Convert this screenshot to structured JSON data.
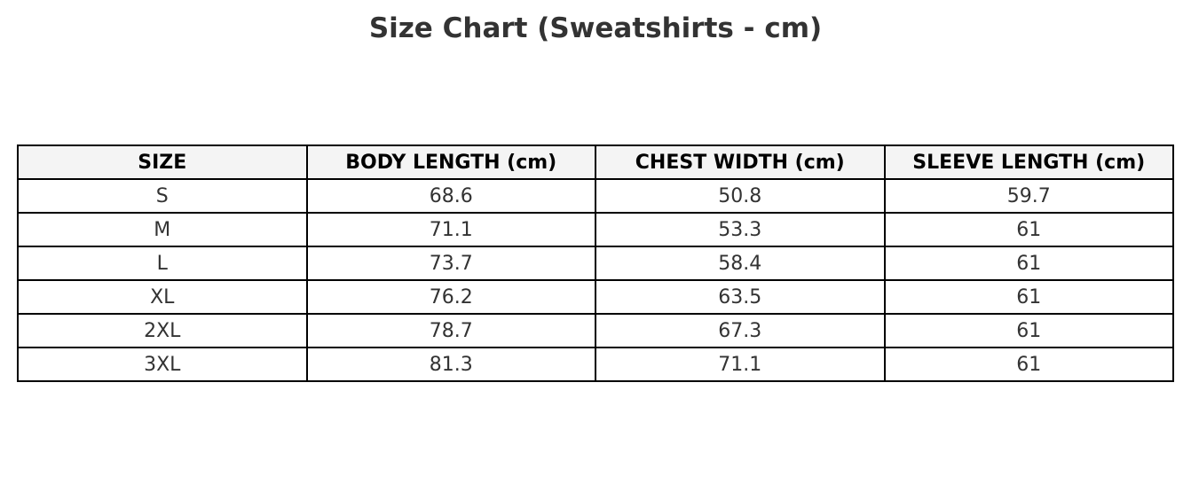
{
  "title": "Size Chart (Sweatshirts - cm)",
  "table": {
    "columns": [
      "SIZE",
      "BODY LENGTH (cm)",
      "CHEST WIDTH (cm)",
      "SLEEVE LENGTH (cm)"
    ],
    "rows": [
      [
        "S",
        "68.6",
        "50.8",
        "59.7"
      ],
      [
        "M",
        "71.1",
        "53.3",
        "61"
      ],
      [
        "L",
        "73.7",
        "58.4",
        "61"
      ],
      [
        "XL",
        "76.2",
        "63.5",
        "61"
      ],
      [
        "2XL",
        "78.7",
        "67.3",
        "61"
      ],
      [
        "3XL",
        "81.3",
        "71.1",
        "61"
      ]
    ]
  }
}
